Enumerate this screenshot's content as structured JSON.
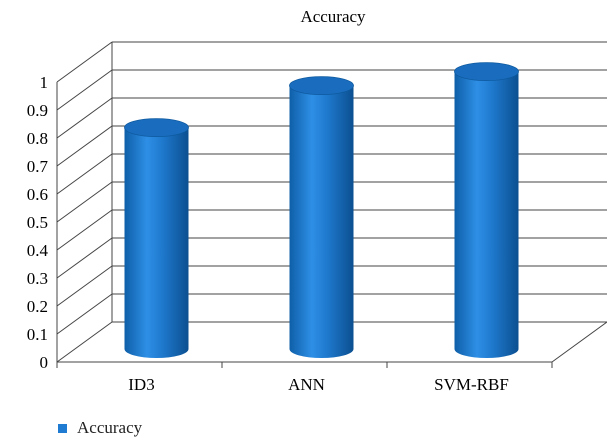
{
  "chart_data": {
    "type": "bar",
    "title": "Accuracy",
    "categories": [
      "ID3",
      "ANN",
      "SVM-RBF"
    ],
    "series": [
      {
        "name": "Accuracy",
        "values": [
          0.78,
          0.93,
          0.98
        ],
        "color": "#1F7BD1"
      }
    ],
    "ylim": [
      0,
      1
    ],
    "yticks": [
      "0",
      "0.1",
      "0.2",
      "0.3",
      "0.4",
      "0.5",
      "0.6",
      "0.7",
      "0.8",
      "0.9",
      "1"
    ],
    "grid": true,
    "style": "3d-cylinder",
    "legend_position": "bottom-left"
  }
}
